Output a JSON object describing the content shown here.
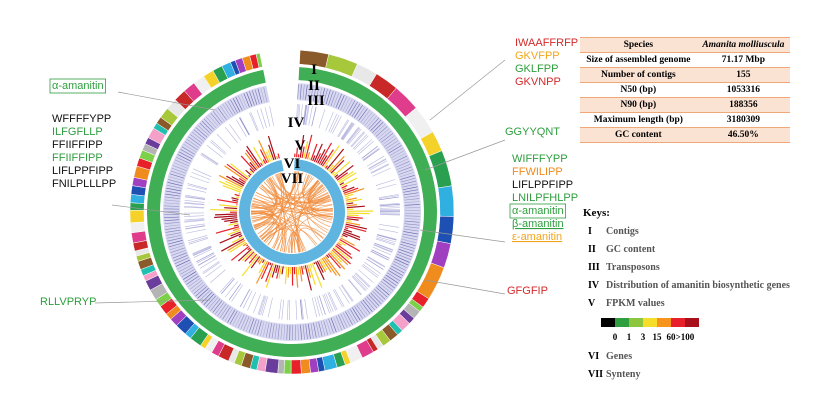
{
  "plot_labels": [
    "I",
    "II",
    "III",
    "IV",
    "V",
    "VI",
    "VII"
  ],
  "peptides": {
    "left_top": [
      {
        "text": "α-amanitin",
        "color": "#2e9e3e",
        "boxed": true
      }
    ],
    "left_list": [
      {
        "text": "WFFFFYPP",
        "color": "#111111"
      },
      {
        "text": "ILFGFLLP",
        "color": "#2e9e3e"
      },
      {
        "text": "FFIIFFIPP",
        "color": "#111111"
      },
      {
        "text": "FFIIFFIPP",
        "color": "#2e9e3e"
      },
      {
        "text": "LIFLPPFIPP",
        "color": "#111111"
      },
      {
        "text": "FNILPLLLPP",
        "color": "#111111"
      }
    ],
    "left_bottom": [
      {
        "text": "RLLVPRYP",
        "color": "#2e9e3e"
      }
    ],
    "right_top": [
      {
        "text": "IWAAFFRFP",
        "color": "#d42a2a"
      },
      {
        "text": "GKVFPP",
        "color": "#f2a51a"
      },
      {
        "text": "GKLFPP",
        "color": "#2e9e3e"
      },
      {
        "text": "GKVNPP",
        "color": "#d42a2a"
      }
    ],
    "right_mid": [
      {
        "text": "GGYYQNT",
        "color": "#2e9e3e"
      }
    ],
    "right_list": [
      {
        "text": "WIFFFYPP",
        "color": "#2e9e3e"
      },
      {
        "text": "FFWILIPP",
        "color": "#f08a1c"
      },
      {
        "text": "LIFLPPFIPP",
        "color": "#111111"
      },
      {
        "text": "LNILPFHLPP",
        "color": "#2e9e3e"
      },
      {
        "text": "α-amanitin",
        "color": "#2e9e3e",
        "boxed": true
      },
      {
        "text": "β-amanitin",
        "color": "#2e9e3e",
        "underline": true
      },
      {
        "text": "ε-amanitin",
        "color": "#f2a51a",
        "underline": true
      }
    ],
    "right_bottom": [
      {
        "text": "GFGFIP",
        "color": "#d42a2a"
      }
    ]
  },
  "table": {
    "header": [
      "Species",
      "Amanita molliuscula"
    ],
    "rows": [
      [
        "Size of assembled genome",
        "71.17 Mbp"
      ],
      [
        "Number of contigs",
        "155"
      ],
      [
        "N50 (bp)",
        "1053316"
      ],
      [
        "N90 (bp)",
        "188356"
      ],
      [
        "Maximum length (bp)",
        "3180309"
      ],
      [
        "GC content",
        "46.50%"
      ]
    ]
  },
  "keys": {
    "title": "Keys:",
    "items": [
      {
        "numeral": "I",
        "label": "Contigs"
      },
      {
        "numeral": "II",
        "label": "GC content"
      },
      {
        "numeral": "III",
        "label": "Transposons"
      },
      {
        "numeral": "IV",
        "label": "Distribution of amanitin biosynthetic genes"
      },
      {
        "numeral": "V",
        "label": "FPKM values"
      }
    ],
    "scale_colors": [
      "#000000",
      "#2e9e3e",
      "#8cc63f",
      "#f5dd2a",
      "#f7941d",
      "#e8202a",
      "#a8101c"
    ],
    "scale_labels": [
      "0",
      "1",
      "3",
      "15",
      "60",
      ">100"
    ],
    "items_after": [
      {
        "numeral": "VI",
        "label": "Genes"
      },
      {
        "numeral": "VII",
        "label": "Synteny"
      }
    ]
  }
}
